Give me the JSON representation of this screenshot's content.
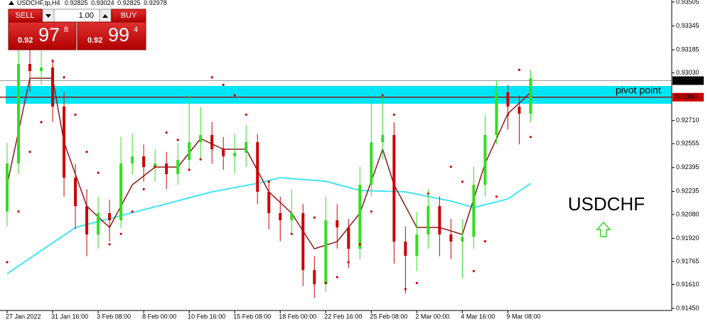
{
  "header": {
    "symbol": "USDCHF,tp,H4",
    "ohlc": [
      0.92825,
      0.93024,
      0.92825,
      0.92978
    ]
  },
  "trade_panel": {
    "sell": "SELL",
    "buy": "BUY",
    "lot": "1.00",
    "bid": {
      "prefix": "0.92",
      "big": "97",
      "small": "8"
    },
    "ask": {
      "prefix": "0.92",
      "big": "99",
      "small": "4"
    }
  },
  "chart_data": {
    "type": "candlestick",
    "up_color": "#33dd22",
    "down_color": "#cc0000",
    "xlim": [
      -0.125,
      58.4
    ],
    "ylim": [
      0.91436,
      0.93519
    ],
    "xticks": [
      {
        "value": 0,
        "label": "27 Jan 2022"
      },
      {
        "value": 4,
        "label": "31 Jan 16:00"
      },
      {
        "value": 8,
        "label": "3 Feb 08:00"
      },
      {
        "value": 12,
        "label": "8 Feb 00:00"
      },
      {
        "value": 16,
        "label": "10 Feb 16:00"
      },
      {
        "value": 20,
        "label": "15 Feb 08:00"
      },
      {
        "value": 24,
        "label": "18 Feb 00:00"
      },
      {
        "value": 28,
        "label": "22 Feb 16:00"
      },
      {
        "value": 32,
        "label": "25 Feb 08:00"
      },
      {
        "value": 36,
        "label": "2 Mar 00:00"
      },
      {
        "value": 40,
        "label": "4 Mar 16:00"
      },
      {
        "value": 44,
        "label": "9 Mar 08:00"
      }
    ],
    "yticks": [
      0.93505,
      0.93345,
      0.93185,
      {
        "value": 0.9303,
        "label": "0.93030"
      },
      {
        "value": 0.9271,
        "label": "0.92710"
      },
      0.92555,
      0.92395,
      0.92235,
      {
        "value": 0.9208,
        "label": "0.92080"
      },
      {
        "value": 0.9192,
        "label": "0.91920"
      },
      0.91765,
      {
        "value": 0.9161,
        "label": "0.91610"
      },
      {
        "value": 0.9145,
        "label": "0.91450"
      }
    ],
    "open": [
      0.921,
      0.92422,
      0.9309,
      0.93042,
      0.93066,
      0.92804,
      0.92327,
      0.92136,
      0.91946,
      0.92089,
      0.92041,
      0.92422,
      0.9247,
      0.92398,
      0.92422,
      0.92351,
      0.92446,
      0.92565,
      0.92613,
      0.92518,
      0.9247,
      0.92494,
      0.92565,
      0.92232,
      0.92089,
      0.92041,
      0.92089,
      0.91707,
      0.91612,
      0.92041,
      0.91993,
      0.9185,
      0.92279,
      0.92565,
      0.92613,
      0.91898,
      0.91803,
      0.91946,
      0.92136,
      0.91946,
      0.91898,
      0.9193,
      0.92279,
      0.92613,
      0.92899,
      0.92804,
      0.92756
    ],
    "high": [
      0.9256,
      0.932,
      0.932,
      0.9318,
      0.9312,
      0.929,
      0.9242,
      0.9225,
      0.922,
      0.9218,
      0.926,
      0.9262,
      0.9255,
      0.9252,
      0.925,
      0.9256,
      0.929,
      0.928,
      0.927,
      0.926,
      0.9262,
      0.9268,
      0.9262,
      0.923,
      0.922,
      0.9225,
      0.9215,
      0.918,
      0.922,
      0.9215,
      0.9205,
      0.924,
      0.9285,
      0.9288,
      0.927,
      0.92,
      0.921,
      0.9225,
      0.922,
      0.9205,
      0.9205,
      0.924,
      0.9275,
      0.9298,
      0.9295,
      0.9288,
      0.9305
    ],
    "low": [
      0.92,
      0.9235,
      0.929,
      0.9295,
      0.927,
      0.922,
      0.9198,
      0.918,
      0.9185,
      0.919,
      0.9199,
      0.9235,
      0.923,
      0.923,
      0.9225,
      0.9228,
      0.9238,
      0.9245,
      0.9242,
      0.9238,
      0.9235,
      0.924,
      0.9215,
      0.9198,
      0.919,
      0.9195,
      0.916,
      0.9152,
      0.9156,
      0.9185,
      0.9172,
      0.9178,
      0.922,
      0.9245,
      0.9175,
      0.9155,
      0.917,
      0.9185,
      0.918,
      0.9178,
      0.9165,
      0.9185,
      0.922,
      0.9255,
      0.9265,
      0.9255,
      0.927
    ],
    "close": [
      0.92422,
      0.9309,
      0.93042,
      0.93066,
      0.92804,
      0.92327,
      0.92136,
      0.91946,
      0.92089,
      0.92041,
      0.92422,
      0.9247,
      0.92398,
      0.92422,
      0.92351,
      0.92446,
      0.92565,
      0.92613,
      0.92518,
      0.9247,
      0.92494,
      0.92565,
      0.92232,
      0.92089,
      0.92041,
      0.92089,
      0.91707,
      0.91612,
      0.92041,
      0.91993,
      0.9185,
      0.92279,
      0.92565,
      0.92613,
      0.91898,
      0.91803,
      0.91946,
      0.92136,
      0.91946,
      0.91898,
      0.9193,
      0.92279,
      0.92613,
      0.92899,
      0.92804,
      0.92756,
      0.92994
    ],
    "lines": [
      {
        "color": "#44e4f4",
        "x": [
          0,
          6,
          12,
          18,
          22,
          24,
          28,
          31,
          35,
          39,
          41,
          44,
          46
        ],
        "values": [
          0.91683,
          0.91993,
          0.92112,
          0.92232,
          0.92289,
          0.92327,
          0.92303,
          0.92241,
          0.92232,
          0.9217,
          0.92127,
          0.92184,
          0.92289
        ]
      },
      {
        "color": "#8b1a1a",
        "x": [
          0,
          2,
          4,
          5,
          7,
          9,
          11,
          13,
          15,
          17,
          19,
          21,
          23,
          25,
          27,
          29,
          31,
          33,
          34,
          36,
          38,
          40,
          42,
          44,
          46
        ],
        "values": [
          0.92279,
          0.92994,
          0.92994,
          0.92565,
          0.92136,
          0.91993,
          0.92279,
          0.92398,
          0.92398,
          0.92589,
          0.92518,
          0.92518,
          0.92232,
          0.92089,
          0.9185,
          0.91898,
          0.92089,
          0.92518,
          0.92279,
          0.91993,
          0.91993,
          0.91946,
          0.92422,
          0.92756,
          0.92899
        ]
      }
    ],
    "sar": {
      "color": "#cc0000",
      "values": [
        0.9176,
        0.921,
        0.925,
        0.927,
        0.9311,
        0.93,
        0.9275,
        0.925,
        0.9236,
        0.9188,
        0.9195,
        0.921,
        0.9225,
        0.924,
        0.9263,
        0.9258,
        0.9238,
        0.9245,
        0.93,
        0.9295,
        0.9288,
        0.9275,
        0.9255,
        0.923,
        0.9205,
        0.9195,
        0.919,
        0.9206,
        0.9162,
        0.9166,
        0.9176,
        0.9188,
        0.921,
        0.9288,
        0.9275,
        0.9158,
        0.9162,
        0.9222,
        0.9213,
        0.924,
        0.923,
        0.917,
        0.919,
        0.922,
        0.9275,
        0.9305,
        0.926
      ]
    },
    "pivot_band": [
      0.92823,
      0.92942
    ],
    "band_color": "#00e5f5",
    "pivot": 0.92867,
    "pivot_color": "#8b1a1a",
    "pivot_label": "pivot point",
    "current_price": 0.92978,
    "annotation": "USDCHF"
  }
}
